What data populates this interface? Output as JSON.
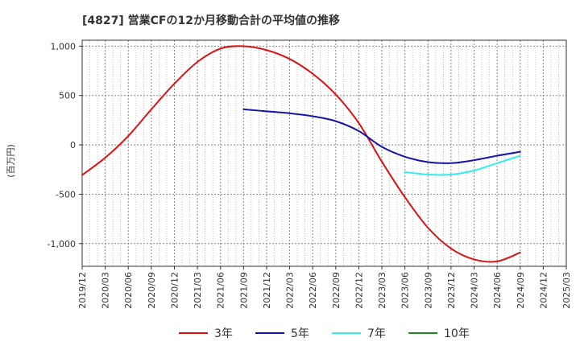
{
  "chart_data": {
    "type": "line",
    "title": "[4827]  営業CFの12か月移動合計の平均値の推移",
    "ylabel": "(百万円)",
    "xlabel": "",
    "ylim": [
      -1230,
      1060
    ],
    "yticks": [
      1000,
      500,
      0,
      -500,
      -1000
    ],
    "ytick_labels": [
      "1,000",
      "500",
      "0",
      "-500",
      "-1,000"
    ],
    "x_ticks": [
      "2019/12",
      "2020/03",
      "2020/06",
      "2020/09",
      "2020/12",
      "2021/03",
      "2021/06",
      "2021/09",
      "2021/12",
      "2022/03",
      "2022/06",
      "2022/09",
      "2022/12",
      "2023/03",
      "2023/06",
      "2023/09",
      "2023/12",
      "2024/03",
      "2024/06",
      "2024/09",
      "2024/12",
      "2025/03"
    ],
    "grid": true,
    "legend_position": "bottom",
    "series": [
      {
        "name": "3年",
        "color": "#dd1111",
        "x": [
          "2019/12",
          "2020/03",
          "2020/06",
          "2020/09",
          "2020/12",
          "2021/03",
          "2021/06",
          "2021/09",
          "2021/12",
          "2022/03",
          "2022/06",
          "2022/09",
          "2022/12",
          "2023/03",
          "2023/06",
          "2023/09",
          "2023/12",
          "2024/03",
          "2024/06",
          "2024/09"
        ],
        "values": [
          -305,
          -130,
          90,
          360,
          620,
          840,
          975,
          1000,
          960,
          870,
          720,
          510,
          220,
          -170,
          -530,
          -840,
          -1050,
          -1160,
          -1180,
          -1090
        ]
      },
      {
        "name": "5年",
        "color": "#1414aa",
        "x": [
          "2021/09",
          "2021/12",
          "2022/03",
          "2022/06",
          "2022/09",
          "2022/12",
          "2023/03",
          "2023/06",
          "2023/09",
          "2023/12",
          "2024/03",
          "2024/06",
          "2024/09"
        ],
        "values": [
          360,
          340,
          320,
          290,
          240,
          140,
          -20,
          -120,
          -175,
          -185,
          -155,
          -110,
          -70
        ]
      },
      {
        "name": "7年",
        "color": "#33eeee",
        "x": [
          "2023/06",
          "2023/09",
          "2023/12",
          "2024/03",
          "2024/06",
          "2024/09"
        ],
        "values": [
          -275,
          -300,
          -300,
          -260,
          -185,
          -110
        ]
      },
      {
        "name": "10年",
        "color": "#228822",
        "x": [],
        "values": []
      }
    ]
  }
}
